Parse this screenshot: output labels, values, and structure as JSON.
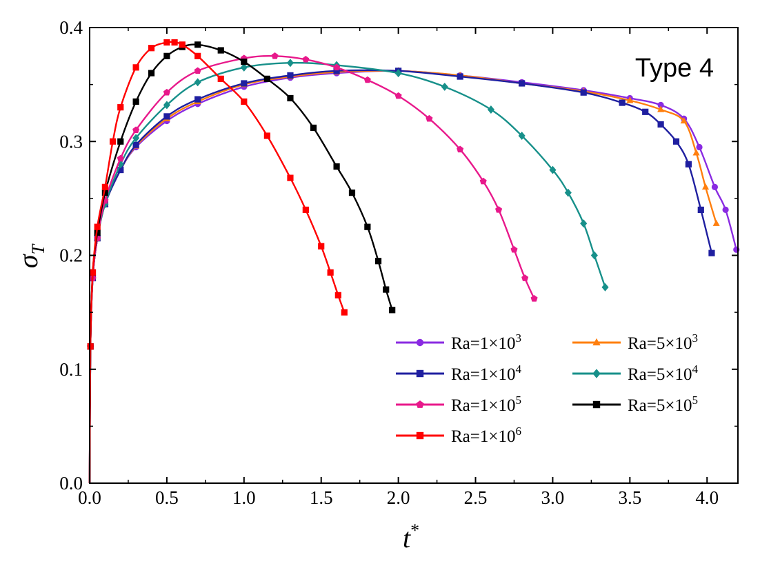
{
  "chart_data": {
    "type": "line",
    "xlabel": "t",
    "xlabel_sup": "*",
    "ylabel": "σ",
    "ylabel_sub": "T",
    "xlim": [
      0,
      4.2
    ],
    "ylim": [
      0,
      0.4
    ],
    "xticks": [
      "0.0",
      "0.5",
      "1.0",
      "1.5",
      "2.0",
      "2.5",
      "3.0",
      "3.5",
      "4.0"
    ],
    "yticks": [
      "0.0",
      "0.1",
      "0.2",
      "0.3",
      "0.4"
    ],
    "grid": false,
    "legend_position": "lower-right",
    "annotation": "Type 4",
    "series": [
      {
        "name": "Ra=1×10³",
        "base": "Ra=1×10",
        "exp": "3",
        "color": "#8A2BE2",
        "marker": "circle",
        "x": [
          0,
          0.005,
          0.02,
          0.05,
          0.1,
          0.2,
          0.3,
          0.5,
          0.7,
          1.0,
          1.3,
          1.6,
          2.0,
          2.4,
          2.8,
          3.2,
          3.5,
          3.7,
          3.85,
          3.95,
          4.05,
          4.12,
          4.19
        ],
        "y": [
          0.0,
          0.12,
          0.18,
          0.215,
          0.245,
          0.275,
          0.295,
          0.318,
          0.333,
          0.348,
          0.356,
          0.36,
          0.362,
          0.358,
          0.352,
          0.345,
          0.338,
          0.332,
          0.32,
          0.295,
          0.26,
          0.24,
          0.205
        ]
      },
      {
        "name": "Ra=5×10³",
        "base": "Ra=5×10",
        "exp": "3",
        "color": "#FF7F0E",
        "marker": "triangle",
        "x": [
          0,
          0.005,
          0.02,
          0.05,
          0.1,
          0.2,
          0.3,
          0.5,
          0.7,
          1.0,
          1.3,
          1.6,
          2.0,
          2.4,
          2.8,
          3.2,
          3.5,
          3.7,
          3.85,
          3.93,
          3.99,
          4.06
        ],
        "y": [
          0.0,
          0.12,
          0.18,
          0.215,
          0.245,
          0.275,
          0.296,
          0.32,
          0.335,
          0.35,
          0.357,
          0.361,
          0.362,
          0.358,
          0.351,
          0.344,
          0.336,
          0.328,
          0.318,
          0.29,
          0.26,
          0.228
        ]
      },
      {
        "name": "Ra=1×10⁴",
        "base": "Ra=1×10",
        "exp": "4",
        "color": "#1F1FA0",
        "marker": "square",
        "x": [
          0,
          0.005,
          0.02,
          0.05,
          0.1,
          0.2,
          0.3,
          0.5,
          0.7,
          1.0,
          1.3,
          1.6,
          2.0,
          2.4,
          2.8,
          3.2,
          3.45,
          3.6,
          3.7,
          3.8,
          3.88,
          3.96,
          4.03
        ],
        "y": [
          0.0,
          0.12,
          0.18,
          0.215,
          0.245,
          0.275,
          0.297,
          0.322,
          0.337,
          0.351,
          0.358,
          0.362,
          0.362,
          0.357,
          0.351,
          0.343,
          0.334,
          0.326,
          0.315,
          0.3,
          0.28,
          0.24,
          0.202
        ]
      },
      {
        "name": "Ra=5×10⁴",
        "base": "Ra=5×10",
        "exp": "4",
        "color": "#17908A",
        "marker": "diamond",
        "x": [
          0,
          0.005,
          0.02,
          0.05,
          0.1,
          0.2,
          0.3,
          0.5,
          0.7,
          1.0,
          1.3,
          1.6,
          2.0,
          2.3,
          2.6,
          2.8,
          3.0,
          3.1,
          3.2,
          3.27,
          3.34
        ],
        "y": [
          0.0,
          0.12,
          0.18,
          0.215,
          0.245,
          0.28,
          0.303,
          0.332,
          0.352,
          0.365,
          0.369,
          0.367,
          0.36,
          0.348,
          0.328,
          0.305,
          0.275,
          0.255,
          0.228,
          0.2,
          0.172
        ]
      },
      {
        "name": "Ra=1×10⁵",
        "base": "Ra=1×10",
        "exp": "5",
        "color": "#E8198B",
        "marker": "pentagon",
        "x": [
          0,
          0.005,
          0.02,
          0.05,
          0.1,
          0.2,
          0.3,
          0.5,
          0.7,
          1.0,
          1.2,
          1.4,
          1.6,
          1.8,
          2.0,
          2.2,
          2.4,
          2.55,
          2.65,
          2.75,
          2.82,
          2.88
        ],
        "y": [
          0.0,
          0.12,
          0.18,
          0.215,
          0.248,
          0.285,
          0.31,
          0.343,
          0.362,
          0.373,
          0.375,
          0.372,
          0.365,
          0.354,
          0.34,
          0.32,
          0.293,
          0.265,
          0.24,
          0.205,
          0.18,
          0.162
        ]
      },
      {
        "name": "Ra=5×10⁵",
        "base": "Ra=5×10",
        "exp": "5",
        "color": "#000000",
        "marker": "square",
        "x": [
          0,
          0.005,
          0.02,
          0.05,
          0.1,
          0.2,
          0.3,
          0.4,
          0.5,
          0.6,
          0.7,
          0.85,
          1.0,
          1.15,
          1.3,
          1.45,
          1.6,
          1.7,
          1.8,
          1.87,
          1.92,
          1.96
        ],
        "y": [
          0.0,
          0.12,
          0.185,
          0.22,
          0.255,
          0.3,
          0.335,
          0.36,
          0.375,
          0.383,
          0.385,
          0.38,
          0.37,
          0.355,
          0.338,
          0.312,
          0.278,
          0.255,
          0.225,
          0.195,
          0.17,
          0.152
        ]
      },
      {
        "name": "Ra=1×10⁶",
        "base": "Ra=1×10",
        "exp": "6",
        "color": "#FF0000",
        "marker": "square",
        "x": [
          0,
          0.005,
          0.02,
          0.05,
          0.1,
          0.15,
          0.2,
          0.3,
          0.4,
          0.5,
          0.55,
          0.6,
          0.7,
          0.85,
          1.0,
          1.15,
          1.3,
          1.4,
          1.5,
          1.56,
          1.61,
          1.65
        ],
        "y": [
          0.0,
          0.12,
          0.185,
          0.225,
          0.26,
          0.3,
          0.33,
          0.365,
          0.382,
          0.387,
          0.387,
          0.385,
          0.375,
          0.355,
          0.335,
          0.305,
          0.268,
          0.24,
          0.208,
          0.185,
          0.165,
          0.15
        ]
      }
    ]
  }
}
